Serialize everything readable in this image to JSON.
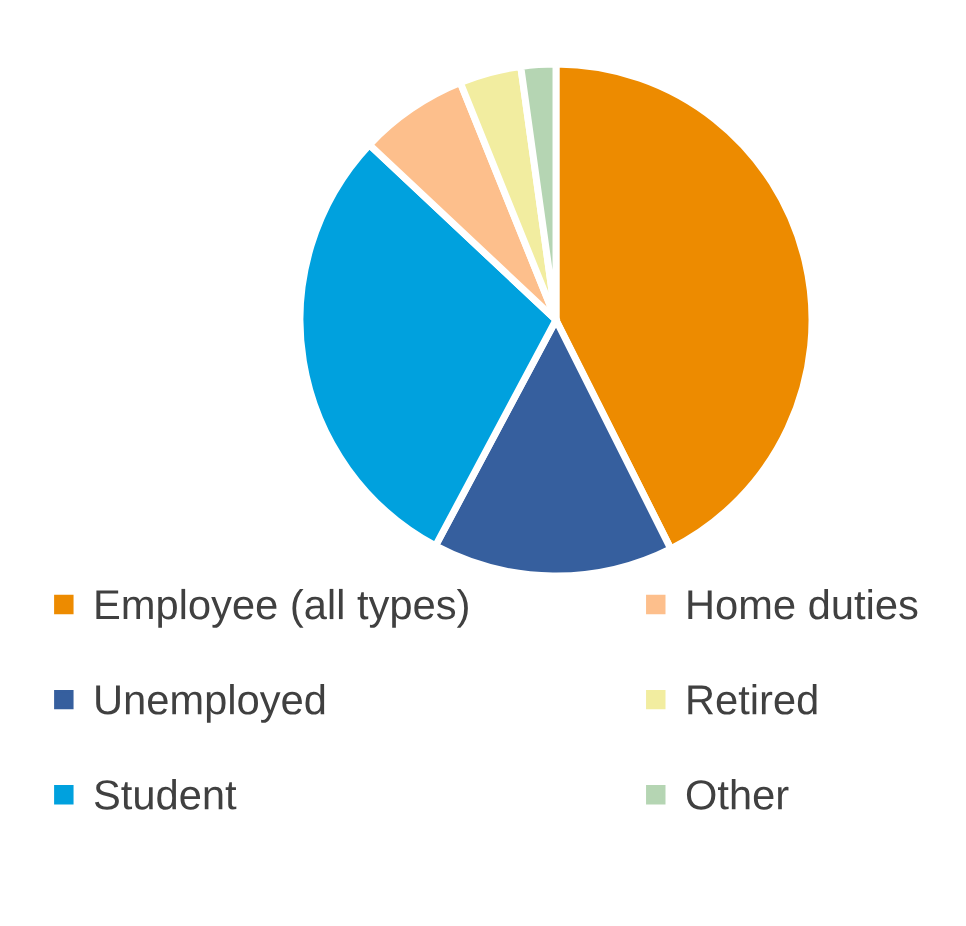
{
  "chart_data": {
    "type": "pie",
    "categories": [
      "Employee (all types)",
      "Unemployed",
      "Student",
      "Home duties",
      "Retired",
      "Other"
    ],
    "values": [
      42.6,
      15.2,
      29.2,
      6.9,
      3.9,
      2.2
    ],
    "colors": [
      "#ed8b00",
      "#365f9e",
      "#00a1de",
      "#fdbf8c",
      "#f2eda0",
      "#b5d5b3"
    ],
    "legend": "bottom"
  }
}
